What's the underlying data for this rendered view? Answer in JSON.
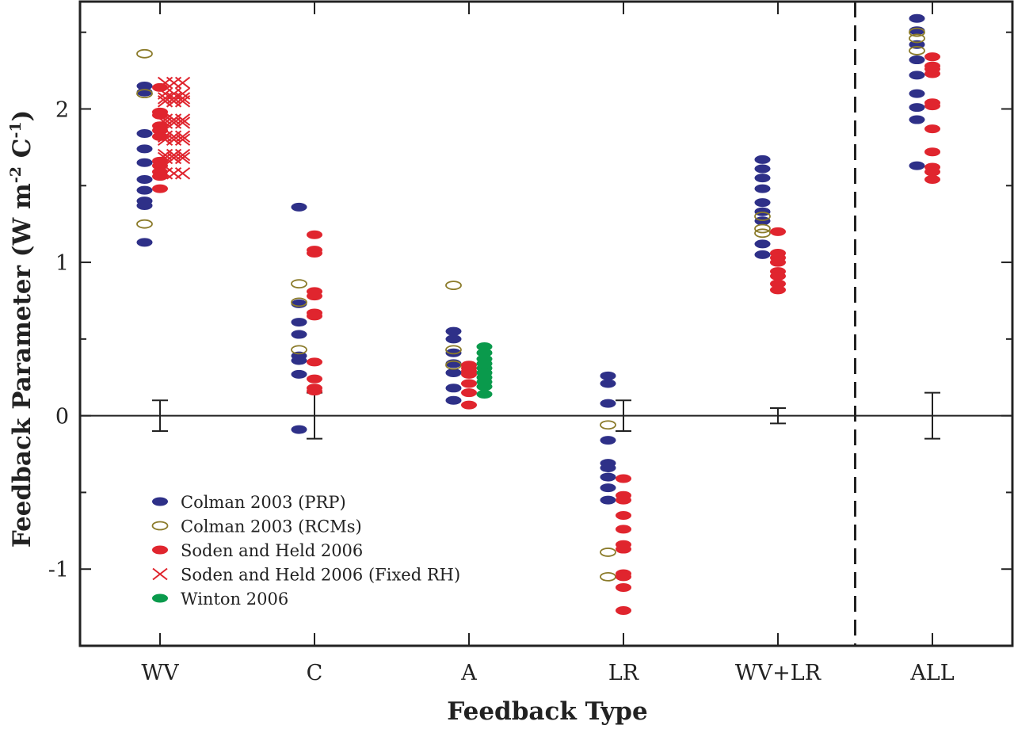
{
  "chart_data": {
    "type": "scatter",
    "title": "",
    "xlabel": "Feedback Type",
    "ylabel_main": "Feedback Parameter (W m",
    "ylabel_sup1": "-2",
    "ylabel_mid": "  C",
    "ylabel_sup2": "-1",
    "ylabel_end": ")",
    "ylim": [
      -1.5,
      2.7
    ],
    "yticks": [
      -1,
      0,
      1,
      2
    ],
    "ytick_labels": [
      "-1",
      "0",
      "1",
      "2"
    ],
    "categories": [
      "WV",
      "C",
      "A",
      "LR",
      "WV+LR",
      "ALL"
    ],
    "divider_after_category": "WV+LR",
    "legend_position": "lower-left",
    "series": [
      {
        "name": "Colman 2003 (PRP)",
        "marker": "filled-ellipse",
        "color": "#2e3088",
        "offset": -0.5,
        "values": {
          "WV": [
            2.15,
            2.11,
            1.84,
            1.74,
            1.65,
            1.54,
            1.47,
            1.4,
            1.37,
            1.13
          ],
          "C": [
            1.36,
            0.73,
            0.61,
            0.53,
            0.39,
            0.36,
            0.27,
            -0.09
          ],
          "A": [
            0.55,
            0.5,
            0.41,
            0.34,
            0.28,
            0.18,
            0.1
          ],
          "LR": [
            0.26,
            0.21,
            0.08,
            -0.16,
            -0.31,
            -0.34,
            -0.4,
            -0.47,
            -0.55
          ],
          "WV+LR": [
            1.67,
            1.61,
            1.55,
            1.48,
            1.39,
            1.33,
            1.27,
            1.12,
            1.05
          ],
          "ALL": [
            2.59,
            2.51,
            2.42,
            2.32,
            2.22,
            2.1,
            2.01,
            1.93,
            1.63
          ]
        }
      },
      {
        "name": "Colman 2003 (RCMs)",
        "marker": "open-ellipse",
        "color": "#8b7b2a",
        "offset": -0.5,
        "values": {
          "WV": [
            2.36,
            2.1,
            1.25
          ],
          "C": [
            0.86,
            0.74,
            0.43
          ],
          "A": [
            0.85,
            0.43,
            0.33
          ],
          "LR": [
            -0.06,
            -0.89,
            -1.05
          ],
          "WV+LR": [
            1.3,
            1.22,
            1.19
          ],
          "ALL": [
            2.5,
            2.46,
            2.38
          ]
        }
      },
      {
        "name": "Soden and Held 2006",
        "marker": "filled-ellipse",
        "color": "#e0252e",
        "offset": 0.0,
        "values": {
          "WV": [
            2.14,
            1.98,
            1.96,
            1.89,
            1.86,
            1.82,
            1.66,
            1.63,
            1.59,
            1.56,
            1.48
          ],
          "C": [
            1.18,
            1.08,
            1.06,
            0.81,
            0.78,
            0.67,
            0.65,
            0.35,
            0.24,
            0.18,
            0.16
          ],
          "A": [
            0.33,
            0.31,
            0.29,
            0.27,
            0.21,
            0.15,
            0.07
          ],
          "LR": [
            -0.41,
            -0.52,
            -0.55,
            -0.65,
            -0.74,
            -0.84,
            -0.87,
            -1.03,
            -1.05,
            -1.12,
            -1.27
          ],
          "WV+LR": [
            1.2,
            1.06,
            1.03,
            1.0,
            0.94,
            0.91,
            0.86,
            0.82
          ],
          "ALL": [
            2.34,
            2.28,
            2.26,
            2.23,
            2.04,
            2.02,
            1.87,
            1.72,
            1.62,
            1.59,
            1.54
          ]
        }
      },
      {
        "name": "Soden and Held 2006 (Fixed RH)",
        "marker": "cross",
        "color": "#e0252e",
        "offset": 0.45,
        "values": {
          "WV": [
            2.17,
            2.1,
            2.07,
            2.05,
            1.93,
            1.91,
            1.82,
            1.8,
            1.7,
            1.68,
            1.58
          ]
        }
      },
      {
        "name": "Winton 2006",
        "marker": "filled-ellipse",
        "color": "#0a9a4c",
        "offset": 0.5,
        "values": {
          "A": [
            0.45,
            0.41,
            0.37,
            0.34,
            0.31,
            0.28,
            0.25,
            0.22,
            0.19,
            0.14
          ]
        }
      }
    ],
    "error_bars": [
      {
        "category": "WV",
        "low": -0.1,
        "high": 0.1
      },
      {
        "category": "C",
        "low": -0.15,
        "high": 0.15
      },
      {
        "category": "LR",
        "low": -0.1,
        "high": 0.1
      },
      {
        "category": "WV+LR",
        "low": -0.05,
        "high": 0.05
      },
      {
        "category": "ALL",
        "low": -0.15,
        "high": 0.15
      }
    ]
  }
}
